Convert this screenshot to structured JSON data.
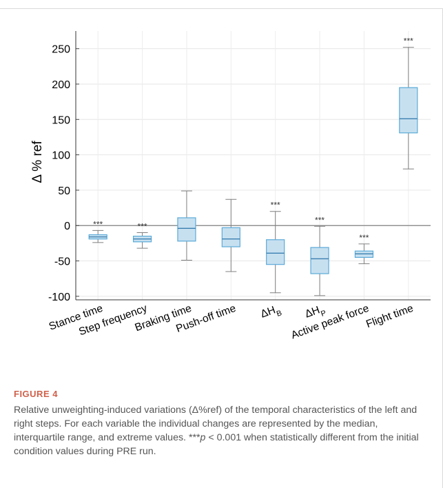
{
  "chart_data": {
    "type": "box",
    "ylabel": "Δ % ref",
    "ylim": [
      -105,
      275
    ],
    "yticks": [
      -100,
      -50,
      0,
      50,
      100,
      150,
      200,
      250
    ],
    "grid": true,
    "zero_line": true,
    "categories": [
      {
        "label": "Stance time",
        "main": "Stance time",
        "sub": ""
      },
      {
        "label": "Step frequency",
        "main": "Step frequency",
        "sub": ""
      },
      {
        "label": "Braking time",
        "main": "Braking time",
        "sub": ""
      },
      {
        "label": "Push-off time",
        "main": "Push-off time",
        "sub": ""
      },
      {
        "label": "ΔHB",
        "main": "ΔH",
        "sub": "B"
      },
      {
        "label": "ΔHP",
        "main": "ΔH",
        "sub": "P"
      },
      {
        "label": "Active peak force",
        "main": "Active peak force",
        "sub": ""
      },
      {
        "label": "Flight time",
        "main": "Flight time",
        "sub": ""
      }
    ],
    "boxes": [
      {
        "min": -24,
        "q1": -19,
        "median": -16,
        "q3": -13,
        "max": -7,
        "sig": "***"
      },
      {
        "min": -32,
        "q1": -23,
        "median": -19,
        "q3": -15,
        "max": -10,
        "sig": "***"
      },
      {
        "min": -49,
        "q1": -22,
        "median": -4,
        "q3": 11,
        "max": 49,
        "sig": ""
      },
      {
        "min": -65,
        "q1": -30,
        "median": -19,
        "q3": -3,
        "max": 37,
        "sig": ""
      },
      {
        "min": -95,
        "q1": -55,
        "median": -39,
        "q3": -20,
        "max": 20,
        "sig": "***"
      },
      {
        "min": -99,
        "q1": -68,
        "median": -47,
        "q3": -31,
        "max": -1,
        "sig": "***"
      },
      {
        "min": -54,
        "q1": -45,
        "median": -40,
        "q3": -36,
        "max": -26,
        "sig": "***"
      },
      {
        "min": 80,
        "q1": 131,
        "median": 151,
        "q3": 195,
        "max": 252,
        "sig": "***"
      }
    ],
    "box_fill": "#c7e0f0",
    "box_stroke": "#5aaad8",
    "median_color": "#3a7fb0",
    "whisker_color": "#7f7f7f"
  },
  "figure": {
    "label": "FIGURE 4",
    "caption_main": "Relative unweighting-induced variations (Δ%ref) of the temporal characteristics of the left and right steps. For each variable the individual changes are represented by the median, interquartile range, and extreme values. ",
    "caption_sig_marker": "***",
    "caption_p": "p",
    "caption_tail": " < 0.001 when statistically different from the initial condition values during PRE run."
  }
}
